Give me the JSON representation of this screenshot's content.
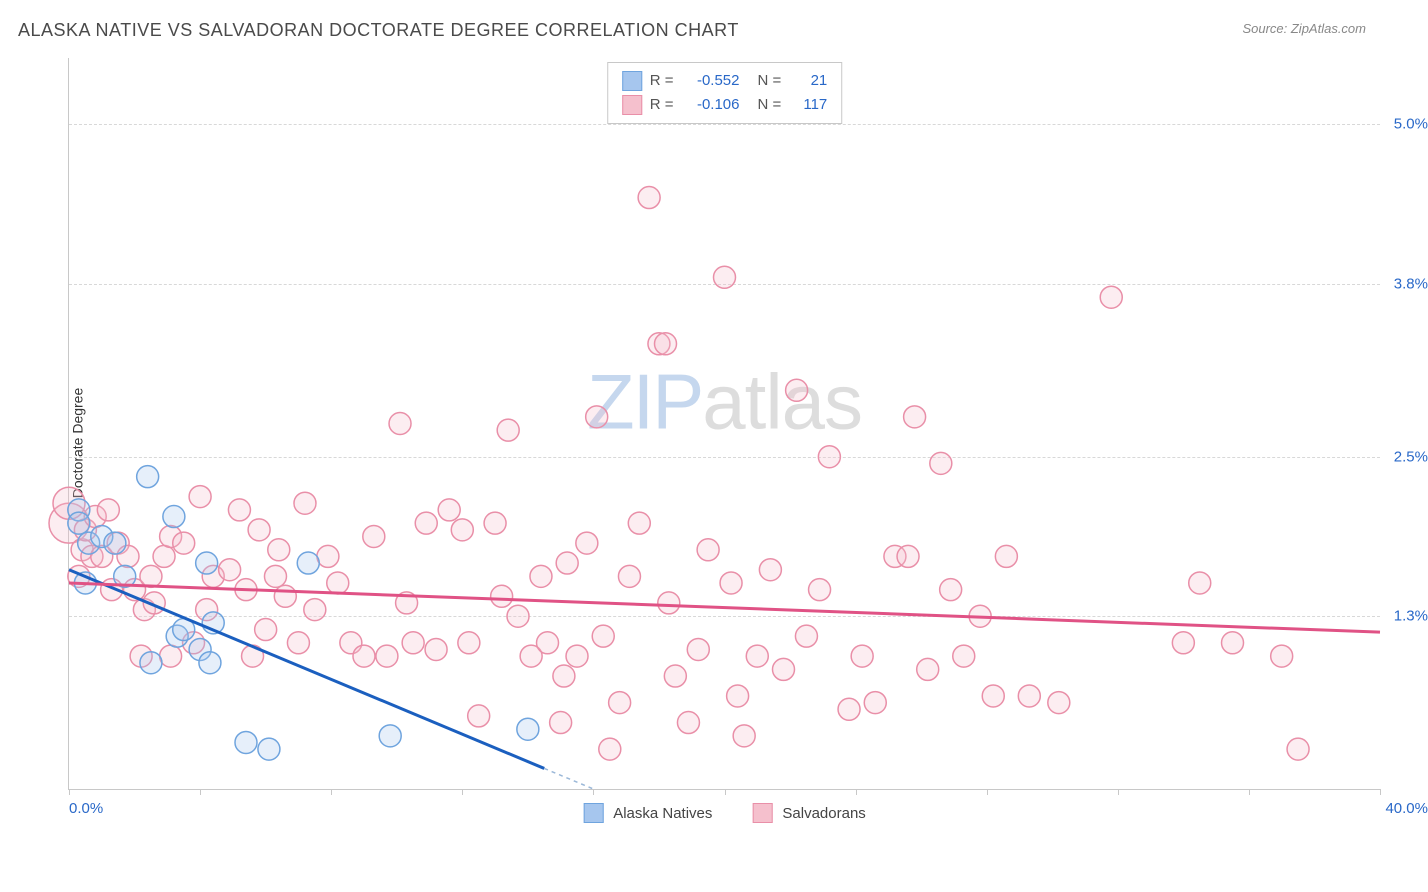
{
  "title": "ALASKA NATIVE VS SALVADORAN DOCTORATE DEGREE CORRELATION CHART",
  "source_label": "Source: ",
  "source_name": "ZipAtlas.com",
  "y_axis_label": "Doctorate Degree",
  "watermark_a": "ZIP",
  "watermark_b": "atlas",
  "chart": {
    "type": "scatter",
    "background_color": "#ffffff",
    "grid_color": "#d8d8d8",
    "axis_color": "#c8c8c8",
    "tick_label_color": "#2968c8",
    "x_range_pct": [
      0.0,
      40.0
    ],
    "y_range_pct": [
      0.0,
      5.5
    ],
    "y_grid_ticks": [
      {
        "value": 5.0,
        "label": "5.0%"
      },
      {
        "value": 3.8,
        "label": "3.8%"
      },
      {
        "value": 2.5,
        "label": "2.5%"
      },
      {
        "value": 1.3,
        "label": "1.3%"
      }
    ],
    "x_ticks_at": [
      0,
      4,
      8,
      12,
      16,
      20,
      24,
      28,
      32,
      36,
      40
    ],
    "x_left_label": "0.0%",
    "x_right_label": "40.0%",
    "marker_radius": 11,
    "marker_opacity_fill": 0.28,
    "marker_stroke_width": 1.5,
    "series": [
      {
        "key": "alaska",
        "name": "Alaska Natives",
        "color_fill": "#a6c6ee",
        "color_stroke": "#6fa4de",
        "trend_color": "#1b5fbf",
        "trend_width": 3,
        "r_label": "R = ",
        "r_value": "-0.552",
        "n_label": "N = ",
        "n_value": "21",
        "trend_line": {
          "x1": 0.0,
          "y1": 1.65,
          "x2": 16.0,
          "y2": 0.0,
          "dash_after_x": 14.5
        },
        "points": [
          {
            "x": 0.3,
            "y": 2.1
          },
          {
            "x": 0.3,
            "y": 2.0
          },
          {
            "x": 0.5,
            "y": 1.55
          },
          {
            "x": 0.6,
            "y": 1.85
          },
          {
            "x": 1.0,
            "y": 1.9
          },
          {
            "x": 1.4,
            "y": 1.85
          },
          {
            "x": 1.7,
            "y": 1.6
          },
          {
            "x": 2.4,
            "y": 2.35
          },
          {
            "x": 2.5,
            "y": 0.95
          },
          {
            "x": 3.2,
            "y": 2.05
          },
          {
            "x": 3.3,
            "y": 1.15
          },
          {
            "x": 3.5,
            "y": 1.2
          },
          {
            "x": 4.0,
            "y": 1.05
          },
          {
            "x": 4.2,
            "y": 1.7
          },
          {
            "x": 4.3,
            "y": 0.95
          },
          {
            "x": 4.4,
            "y": 1.25
          },
          {
            "x": 5.4,
            "y": 0.35
          },
          {
            "x": 6.1,
            "y": 0.3
          },
          {
            "x": 7.3,
            "y": 1.7
          },
          {
            "x": 9.8,
            "y": 0.4
          },
          {
            "x": 14.0,
            "y": 0.45
          }
        ]
      },
      {
        "key": "salvadoran",
        "name": "Salvadorans",
        "color_fill": "#f5c0cd",
        "color_stroke": "#e98fa8",
        "trend_color": "#e05285",
        "trend_width": 3,
        "r_label": "R = ",
        "r_value": "-0.106",
        "n_label": "N = ",
        "n_value": "117",
        "trend_line": {
          "x1": 0.0,
          "y1": 1.55,
          "x2": 40.0,
          "y2": 1.18
        },
        "points": [
          {
            "x": 0.0,
            "y": 2.0,
            "r": 20
          },
          {
            "x": 0.0,
            "y": 2.15,
            "r": 16
          },
          {
            "x": 0.3,
            "y": 1.6
          },
          {
            "x": 0.4,
            "y": 1.8
          },
          {
            "x": 0.5,
            "y": 1.95
          },
          {
            "x": 0.7,
            "y": 1.75
          },
          {
            "x": 0.8,
            "y": 2.05
          },
          {
            "x": 1.0,
            "y": 1.75
          },
          {
            "x": 1.2,
            "y": 2.1
          },
          {
            "x": 1.3,
            "y": 1.5
          },
          {
            "x": 1.5,
            "y": 1.85
          },
          {
            "x": 1.8,
            "y": 1.75
          },
          {
            "x": 2.0,
            "y": 1.5
          },
          {
            "x": 2.2,
            "y": 1.0
          },
          {
            "x": 2.3,
            "y": 1.35
          },
          {
            "x": 2.5,
            "y": 1.6
          },
          {
            "x": 2.6,
            "y": 1.4
          },
          {
            "x": 2.9,
            "y": 1.75
          },
          {
            "x": 3.1,
            "y": 1.0
          },
          {
            "x": 3.1,
            "y": 1.9
          },
          {
            "x": 3.5,
            "y": 1.85
          },
          {
            "x": 3.8,
            "y": 1.1
          },
          {
            "x": 4.0,
            "y": 2.2
          },
          {
            "x": 4.2,
            "y": 1.35
          },
          {
            "x": 4.4,
            "y": 1.6
          },
          {
            "x": 4.9,
            "y": 1.65
          },
          {
            "x": 5.2,
            "y": 2.1
          },
          {
            "x": 5.4,
            "y": 1.5
          },
          {
            "x": 5.6,
            "y": 1.0
          },
          {
            "x": 5.8,
            "y": 1.95
          },
          {
            "x": 6.0,
            "y": 1.2
          },
          {
            "x": 6.3,
            "y": 1.6
          },
          {
            "x": 6.4,
            "y": 1.8
          },
          {
            "x": 6.6,
            "y": 1.45
          },
          {
            "x": 7.0,
            "y": 1.1
          },
          {
            "x": 7.2,
            "y": 2.15
          },
          {
            "x": 7.5,
            "y": 1.35
          },
          {
            "x": 7.9,
            "y": 1.75
          },
          {
            "x": 8.2,
            "y": 1.55
          },
          {
            "x": 8.6,
            "y": 1.1
          },
          {
            "x": 9.0,
            "y": 1.0
          },
          {
            "x": 9.3,
            "y": 1.9
          },
          {
            "x": 9.7,
            "y": 1.0
          },
          {
            "x": 10.1,
            "y": 2.75
          },
          {
            "x": 10.3,
            "y": 1.4
          },
          {
            "x": 10.5,
            "y": 1.1
          },
          {
            "x": 10.9,
            "y": 2.0
          },
          {
            "x": 11.2,
            "y": 1.05
          },
          {
            "x": 11.6,
            "y": 2.1
          },
          {
            "x": 12.0,
            "y": 1.95
          },
          {
            "x": 12.2,
            "y": 1.1
          },
          {
            "x": 12.5,
            "y": 0.55
          },
          {
            "x": 13.0,
            "y": 2.0
          },
          {
            "x": 13.2,
            "y": 1.45
          },
          {
            "x": 13.4,
            "y": 2.7
          },
          {
            "x": 13.7,
            "y": 1.3
          },
          {
            "x": 14.1,
            "y": 1.0
          },
          {
            "x": 14.4,
            "y": 1.6
          },
          {
            "x": 14.6,
            "y": 1.1
          },
          {
            "x": 15.0,
            "y": 0.5
          },
          {
            "x": 15.1,
            "y": 0.85
          },
          {
            "x": 15.2,
            "y": 1.7
          },
          {
            "x": 15.5,
            "y": 1.0
          },
          {
            "x": 15.8,
            "y": 1.85
          },
          {
            "x": 16.1,
            "y": 2.8
          },
          {
            "x": 16.3,
            "y": 1.15
          },
          {
            "x": 16.5,
            "y": 0.3
          },
          {
            "x": 16.8,
            "y": 0.65
          },
          {
            "x": 17.1,
            "y": 1.6
          },
          {
            "x": 17.4,
            "y": 2.0
          },
          {
            "x": 17.7,
            "y": 4.45
          },
          {
            "x": 18.0,
            "y": 3.35
          },
          {
            "x": 18.2,
            "y": 3.35
          },
          {
            "x": 18.3,
            "y": 1.4
          },
          {
            "x": 18.5,
            "y": 0.85
          },
          {
            "x": 18.9,
            "y": 0.5
          },
          {
            "x": 19.2,
            "y": 1.05
          },
          {
            "x": 19.5,
            "y": 1.8
          },
          {
            "x": 20.0,
            "y": 3.85
          },
          {
            "x": 20.2,
            "y": 1.55
          },
          {
            "x": 20.4,
            "y": 0.7
          },
          {
            "x": 20.6,
            "y": 0.4
          },
          {
            "x": 21.0,
            "y": 1.0
          },
          {
            "x": 21.4,
            "y": 1.65
          },
          {
            "x": 21.8,
            "y": 0.9
          },
          {
            "x": 22.2,
            "y": 3.0
          },
          {
            "x": 22.5,
            "y": 1.15
          },
          {
            "x": 22.9,
            "y": 1.5
          },
          {
            "x": 23.2,
            "y": 2.5
          },
          {
            "x": 23.8,
            "y": 0.6
          },
          {
            "x": 24.2,
            "y": 1.0
          },
          {
            "x": 24.6,
            "y": 0.65
          },
          {
            "x": 25.2,
            "y": 1.75
          },
          {
            "x": 25.6,
            "y": 1.75
          },
          {
            "x": 25.8,
            "y": 2.8
          },
          {
            "x": 26.2,
            "y": 0.9
          },
          {
            "x": 26.6,
            "y": 2.45
          },
          {
            "x": 26.9,
            "y": 1.5
          },
          {
            "x": 27.3,
            "y": 1.0
          },
          {
            "x": 27.8,
            "y": 1.3
          },
          {
            "x": 28.2,
            "y": 0.7
          },
          {
            "x": 28.6,
            "y": 1.75
          },
          {
            "x": 29.3,
            "y": 0.7
          },
          {
            "x": 30.2,
            "y": 0.65
          },
          {
            "x": 31.8,
            "y": 3.7
          },
          {
            "x": 34.0,
            "y": 1.1
          },
          {
            "x": 34.5,
            "y": 1.55
          },
          {
            "x": 35.5,
            "y": 1.1
          },
          {
            "x": 37.0,
            "y": 1.0
          },
          {
            "x": 37.5,
            "y": 0.3
          }
        ]
      }
    ]
  }
}
